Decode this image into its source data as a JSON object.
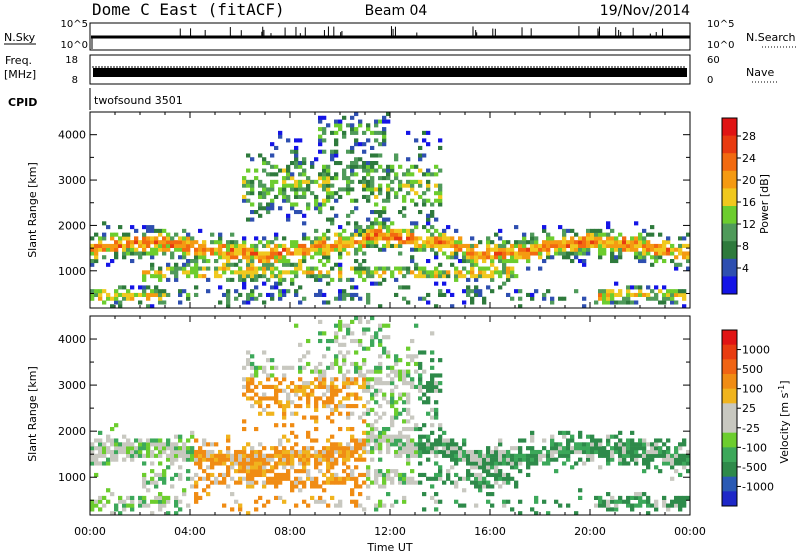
{
  "header": {
    "title_left": "Dome C East (fitACF)",
    "title_center": "Beam 04",
    "title_right": "19/Nov/2014"
  },
  "strip1": {
    "left_label": "N.Sky",
    "right_label": "N.Search",
    "left_ticks": [
      "10^5",
      "10^0"
    ],
    "right_ticks": [
      "10^5",
      "10^0"
    ]
  },
  "strip2": {
    "left_label_1": "Freq.",
    "left_label_2": "[MHz]",
    "right_label": "Nave",
    "left_ticks": [
      "18",
      "8"
    ],
    "right_ticks": [
      "60",
      "0"
    ]
  },
  "cpid": {
    "label": "CPID",
    "value": "twofsound 3501"
  },
  "chart_data": [
    {
      "type": "heatmap",
      "quantity": "Power",
      "ylabel": "Slant Range [km]",
      "ylim": [
        180,
        4500
      ],
      "yticks": [
        "1000",
        "2000",
        "3000",
        "4000"
      ],
      "colorbar_label": "Power [dB]",
      "colorbar_ticks": [
        "28",
        "24",
        "20",
        "16",
        "12",
        "8",
        "4"
      ],
      "colors": [
        "#1414e6",
        "#2e4fb0",
        "#2e7a3c",
        "#4f9a5a",
        "#6ccd2e",
        "#f0c81e",
        "#f59a12",
        "#f26a10",
        "#e83a10",
        "#e01414"
      ]
    },
    {
      "type": "heatmap",
      "quantity": "Velocity",
      "ylabel": "Slant Range [km]",
      "ylim": [
        180,
        4500
      ],
      "yticks": [
        "1000",
        "2000",
        "3000",
        "4000"
      ],
      "colorbar_label": "Velocity [m s^-1]",
      "colorbar_ticks": [
        "1000",
        "500",
        "100",
        "25",
        "-25",
        "-100",
        "-500",
        "-1000"
      ],
      "colors": [
        "#1e28c8",
        "#2a5ab4",
        "#2e8a4a",
        "#3ca85a",
        "#6ccd2e",
        "#c8c8c0",
        "#c8c8c0",
        "#f0b41e",
        "#f08c14",
        "#f06414",
        "#e83c10",
        "#e01414"
      ]
    }
  ],
  "xaxis": {
    "ticks": [
      "00:00",
      "04:00",
      "08:00",
      "12:00",
      "16:00",
      "20:00",
      "00:00"
    ],
    "xlabel": "Time UT"
  }
}
